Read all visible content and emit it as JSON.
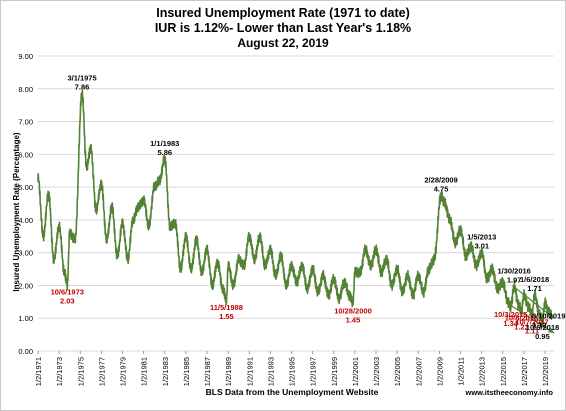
{
  "titles": {
    "line1": "Insured Unemployment Rate (1971 to date)",
    "line2": "IUR is 1.12%- Lower than Last Year's 1.18%",
    "line3": "August 22, 2019"
  },
  "chart_data": {
    "type": "line",
    "title": "Insured Unemployment Rate (1971 to date)",
    "ylabel": "Insured Unemployment Rate (Percentage)",
    "xlabel": "BLS Data from the Unemployment Website",
    "source_note": "www.itstheeconomy.info",
    "ylim": [
      0,
      9
    ],
    "xlim": [
      1971.0,
      2019.85
    ],
    "grid": "horizontal",
    "line_color": "#548235",
    "yticks": [
      "0.00",
      "1.00",
      "2.00",
      "3.00",
      "4.00",
      "5.00",
      "6.00",
      "7.00",
      "8.00",
      "9.00"
    ],
    "xticks": [
      "1/2/1971",
      "1/2/1973",
      "1/2/1975",
      "1/2/1977",
      "1/2/1979",
      "1/2/1981",
      "1/2/1983",
      "1/2/1985",
      "1/2/1987",
      "1/2/1989",
      "1/2/1991",
      "1/2/1993",
      "1/2/1995",
      "1/2/1997",
      "1/2/1999",
      "1/2/2001",
      "1/2/2003",
      "1/2/2005",
      "1/2/2007",
      "1/2/2009",
      "1/2/2011",
      "1/2/2013",
      "1/2/2015",
      "1/2/2017",
      "1/2/2019"
    ],
    "series": [
      {
        "points": [
          [
            1971.0,
            5.3
          ],
          [
            1971.5,
            3.5
          ],
          [
            1972.0,
            4.8
          ],
          [
            1972.5,
            2.8
          ],
          [
            1973.0,
            3.8
          ],
          [
            1973.5,
            2.4
          ],
          [
            1973.77,
            2.03
          ],
          [
            1974.0,
            3.6
          ],
          [
            1974.5,
            3.4
          ],
          [
            1975.17,
            7.86
          ],
          [
            1975.6,
            5.6
          ],
          [
            1976.0,
            6.2
          ],
          [
            1976.5,
            4.3
          ],
          [
            1977.0,
            5.1
          ],
          [
            1977.5,
            3.4
          ],
          [
            1978.0,
            4.4
          ],
          [
            1978.5,
            2.9
          ],
          [
            1979.0,
            3.9
          ],
          [
            1979.5,
            2.8
          ],
          [
            1980.0,
            4.0
          ],
          [
            1980.5,
            4.4
          ],
          [
            1981.0,
            4.6
          ],
          [
            1981.5,
            3.8
          ],
          [
            1982.0,
            5.0
          ],
          [
            1982.5,
            5.2
          ],
          [
            1983.0,
            5.86
          ],
          [
            1983.5,
            3.8
          ],
          [
            1984.0,
            3.9
          ],
          [
            1984.5,
            2.5
          ],
          [
            1985.0,
            3.5
          ],
          [
            1985.5,
            2.5
          ],
          [
            1986.0,
            3.4
          ],
          [
            1986.5,
            2.4
          ],
          [
            1987.0,
            3.1
          ],
          [
            1987.5,
            2.0
          ],
          [
            1988.0,
            2.7
          ],
          [
            1988.5,
            1.9
          ],
          [
            1988.84,
            1.55
          ],
          [
            1989.0,
            2.6
          ],
          [
            1989.5,
            2.0
          ],
          [
            1990.0,
            2.8
          ],
          [
            1990.5,
            2.6
          ],
          [
            1991.0,
            3.5
          ],
          [
            1991.5,
            2.8
          ],
          [
            1992.0,
            3.5
          ],
          [
            1992.5,
            2.6
          ],
          [
            1993.0,
            3.1
          ],
          [
            1993.5,
            2.3
          ],
          [
            1994.0,
            2.9
          ],
          [
            1994.5,
            2.0
          ],
          [
            1995.0,
            2.6
          ],
          [
            1995.5,
            2.1
          ],
          [
            1996.0,
            2.6
          ],
          [
            1996.5,
            1.9
          ],
          [
            1997.0,
            2.5
          ],
          [
            1997.5,
            1.8
          ],
          [
            1998.0,
            2.3
          ],
          [
            1998.5,
            1.7
          ],
          [
            1999.0,
            2.2
          ],
          [
            1999.5,
            1.6
          ],
          [
            2000.0,
            2.1
          ],
          [
            2000.5,
            1.7
          ],
          [
            2000.82,
            1.45
          ],
          [
            2001.0,
            2.4
          ],
          [
            2001.5,
            2.4
          ],
          [
            2002.0,
            3.1
          ],
          [
            2002.5,
            2.6
          ],
          [
            2003.0,
            3.1
          ],
          [
            2003.5,
            2.4
          ],
          [
            2004.0,
            2.8
          ],
          [
            2004.5,
            2.0
          ],
          [
            2005.0,
            2.5
          ],
          [
            2005.5,
            1.8
          ],
          [
            2006.0,
            2.3
          ],
          [
            2006.5,
            1.7
          ],
          [
            2007.0,
            2.3
          ],
          [
            2007.5,
            1.8
          ],
          [
            2008.0,
            2.5
          ],
          [
            2008.5,
            2.8
          ],
          [
            2009.16,
            4.75
          ],
          [
            2009.5,
            4.5
          ],
          [
            2010.0,
            4.0
          ],
          [
            2010.5,
            3.3
          ],
          [
            2011.0,
            3.7
          ],
          [
            2011.5,
            2.9
          ],
          [
            2012.0,
            3.2
          ],
          [
            2012.5,
            2.6
          ],
          [
            2013.01,
            3.01
          ],
          [
            2013.5,
            2.2
          ],
          [
            2014.0,
            2.5
          ],
          [
            2014.5,
            1.9
          ],
          [
            2015.0,
            2.1
          ],
          [
            2015.5,
            1.5
          ],
          [
            2015.75,
            1.34
          ],
          [
            2016.08,
            1.97
          ],
          [
            2016.5,
            1.4
          ],
          [
            2016.77,
            1.23
          ],
          [
            2017.0,
            1.7
          ],
          [
            2017.5,
            1.3
          ],
          [
            2017.77,
            1.11
          ],
          [
            2018.01,
            1.71
          ],
          [
            2018.5,
            1.1
          ],
          [
            2018.76,
            0.95
          ],
          [
            2019.0,
            1.5
          ],
          [
            2019.3,
            1.2
          ],
          [
            2019.61,
            1.12
          ]
        ]
      }
    ],
    "annotations": [
      {
        "date": "3/1/1975",
        "value": "7.86",
        "x": 1975.17,
        "y": 7.86,
        "color": "black",
        "pos": "above"
      },
      {
        "date": "1/1/1983",
        "value": "5.86",
        "x": 1983.0,
        "y": 5.86,
        "color": "black",
        "pos": "above"
      },
      {
        "date": "2/28/2009",
        "value": "4.75",
        "x": 2009.16,
        "y": 4.75,
        "color": "black",
        "pos": "above"
      },
      {
        "date": "1/5/2013",
        "value": "3.01",
        "x": 2013.01,
        "y": 3.01,
        "color": "black",
        "pos": "above"
      },
      {
        "date": "1/30/2016",
        "value": "1.97",
        "x": 2016.08,
        "y": 1.97,
        "color": "black",
        "pos": "above"
      },
      {
        "date": "1/6/2018",
        "value": "1.71",
        "x": 2018.01,
        "y": 1.71,
        "color": "black",
        "pos": "above"
      },
      {
        "date": "10/6/1973",
        "value": "2.03",
        "x": 1973.77,
        "y": 2.03,
        "color": "red",
        "pos": "below"
      },
      {
        "date": "11/5/1988",
        "value": "1.55",
        "x": 1988.84,
        "y": 1.55,
        "color": "red",
        "pos": "below"
      },
      {
        "date": "10/28/2000",
        "value": "1.45",
        "x": 2000.82,
        "y": 1.45,
        "color": "red",
        "pos": "below"
      },
      {
        "date": "10/3/2015",
        "value": "1.34",
        "x": 2015.75,
        "y": 1.34,
        "color": "red",
        "pos": "below"
      },
      {
        "date": "10/8/2016",
        "value": "1.23",
        "x": 2016.77,
        "y": 1.23,
        "color": "red",
        "pos": "below"
      },
      {
        "date": "10/7/2017",
        "value": "1.11",
        "x": 2017.77,
        "y": 1.11,
        "color": "red",
        "pos": "below"
      },
      {
        "date": "10/6/2018",
        "value": "0.95",
        "x": 2018.76,
        "y": 0.95,
        "color": "black",
        "pos": "below"
      },
      {
        "date": "8/10/2019",
        "value": "1.12",
        "x": 2019.61,
        "y": 1.12,
        "color": "black",
        "pos": "right"
      }
    ],
    "trendlines": [
      {
        "from": [
          2015.9,
          2.0
        ],
        "to": [
          2019.85,
          1.0
        ]
      },
      {
        "from": [
          2015.7,
          1.4
        ],
        "to": [
          2019.85,
          0.55
        ]
      }
    ]
  }
}
